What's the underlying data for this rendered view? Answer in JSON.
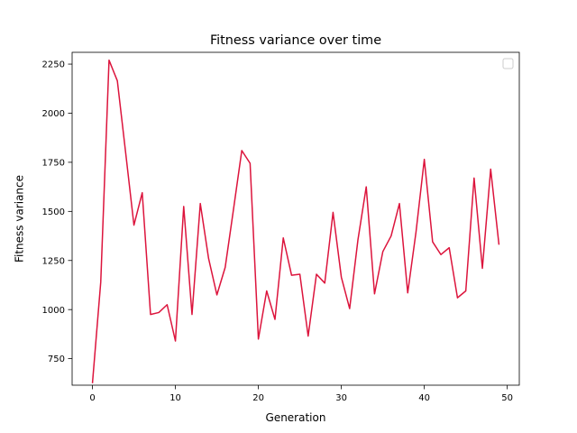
{
  "chart_data": {
    "type": "line",
    "title": "Fitness variance over time",
    "xlabel": "Generation",
    "ylabel": "Fitness variance",
    "xlim": [
      -2.45,
      51.45
    ],
    "ylim": [
      615,
      2310
    ],
    "xticks": [
      0,
      10,
      20,
      30,
      40,
      50
    ],
    "yticks": [
      750,
      1000,
      1250,
      1500,
      1750,
      2000,
      2250
    ],
    "xtick_labels": [
      "0",
      "10",
      "20",
      "30",
      "40",
      "50"
    ],
    "ytick_labels": [
      "750",
      "1000",
      "1250",
      "1500",
      "1750",
      "2000",
      "2250"
    ],
    "grid": false,
    "legend": "top-right (empty)",
    "series": [
      {
        "color": "#dc143c",
        "x": [
          0,
          1,
          2,
          3,
          4,
          5,
          6,
          7,
          8,
          9,
          10,
          11,
          12,
          13,
          14,
          15,
          16,
          17,
          18,
          19,
          20,
          21,
          22,
          23,
          24,
          25,
          26,
          27,
          28,
          29,
          30,
          31,
          32,
          33,
          34,
          35,
          36,
          37,
          38,
          39,
          40,
          41,
          42,
          43,
          44,
          45,
          46,
          47,
          48,
          49
        ],
        "y": [
          625,
          1140,
          2270,
          2165,
          1800,
          1430,
          1595,
          975,
          985,
          1025,
          840,
          1525,
          975,
          1540,
          1260,
          1075,
          1215,
          1510,
          1810,
          1745,
          850,
          1095,
          950,
          1365,
          1175,
          1180,
          865,
          1180,
          1135,
          1495,
          1165,
          1005,
          1355,
          1625,
          1080,
          1295,
          1375,
          1540,
          1085,
          1395,
          1765,
          1345,
          1280,
          1315,
          1060,
          1095,
          1670,
          1210,
          1715,
          1330
        ]
      }
    ]
  }
}
